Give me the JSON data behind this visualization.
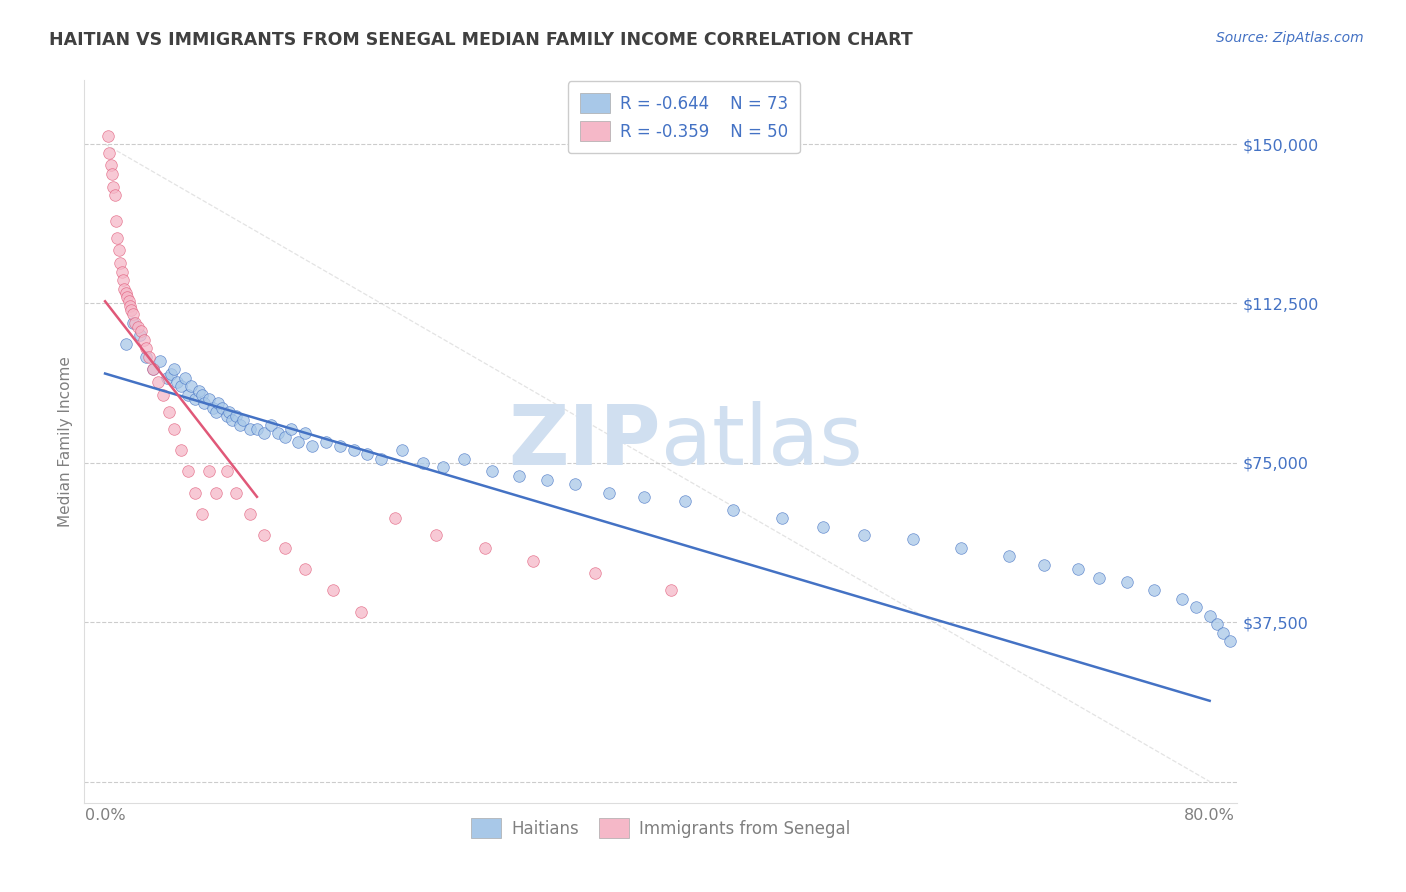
{
  "title": "HAITIAN VS IMMIGRANTS FROM SENEGAL MEDIAN FAMILY INCOME CORRELATION CHART",
  "source": "Source: ZipAtlas.com",
  "ylabel": "Median Family Income",
  "xlim": [
    -1.5,
    82
  ],
  "ylim": [
    -5000,
    165000
  ],
  "yticks": [
    0,
    37500,
    75000,
    112500,
    150000
  ],
  "ytick_labels": [
    "",
    "$37,500",
    "$75,000",
    "$112,500",
    "$150,000"
  ],
  "xtick_labels": [
    "0.0%",
    "80.0%"
  ],
  "xtick_pos": [
    0,
    80
  ],
  "legend_r1": "R = -0.644",
  "legend_n1": "N = 73",
  "legend_r2": "R = -0.359",
  "legend_n2": "N = 50",
  "blue_color": "#A8C8E8",
  "pink_color": "#F5B8C8",
  "blue_line_color": "#4472C4",
  "pink_line_color": "#E05878",
  "title_color": "#404040",
  "axis_label_color": "#808080",
  "tick_color_right": "#4472C4",
  "grid_color": "#CCCCCC",
  "watermark_color": "#D0DFF0",
  "background_color": "#FFFFFF",
  "blue_line_x0": 0,
  "blue_line_y0": 96000,
  "blue_line_x1": 80,
  "blue_line_y1": 19000,
  "pink_line_x0": 0,
  "pink_line_y0": 113000,
  "pink_line_x1": 11,
  "pink_line_y1": 67000,
  "diag_line_x": [
    0,
    80
  ],
  "diag_line_y": [
    150000,
    0
  ],
  "blue_scatter_x": [
    1.5,
    2.0,
    2.5,
    3.0,
    3.5,
    4.0,
    4.5,
    4.8,
    5.0,
    5.2,
    5.5,
    5.8,
    6.0,
    6.2,
    6.5,
    6.8,
    7.0,
    7.2,
    7.5,
    7.8,
    8.0,
    8.2,
    8.5,
    8.8,
    9.0,
    9.2,
    9.5,
    9.8,
    10.0,
    10.5,
    11.0,
    11.5,
    12.0,
    12.5,
    13.0,
    13.5,
    14.0,
    14.5,
    15.0,
    16.0,
    17.0,
    18.0,
    19.0,
    20.0,
    21.5,
    23.0,
    24.5,
    26.0,
    28.0,
    30.0,
    32.0,
    34.0,
    36.5,
    39.0,
    42.0,
    45.5,
    49.0,
    52.0,
    55.0,
    58.5,
    62.0,
    65.5,
    68.0,
    70.5,
    72.0,
    74.0,
    76.0,
    78.0,
    79.0,
    80.0,
    80.5,
    81.0,
    81.5
  ],
  "blue_scatter_y": [
    103000,
    108000,
    105000,
    100000,
    97000,
    99000,
    95000,
    96000,
    97000,
    94000,
    93000,
    95000,
    91000,
    93000,
    90000,
    92000,
    91000,
    89000,
    90000,
    88000,
    87000,
    89000,
    88000,
    86000,
    87000,
    85000,
    86000,
    84000,
    85000,
    83000,
    83000,
    82000,
    84000,
    82000,
    81000,
    83000,
    80000,
    82000,
    79000,
    80000,
    79000,
    78000,
    77000,
    76000,
    78000,
    75000,
    74000,
    76000,
    73000,
    72000,
    71000,
    70000,
    68000,
    67000,
    66000,
    64000,
    62000,
    60000,
    58000,
    57000,
    55000,
    53000,
    51000,
    50000,
    48000,
    47000,
    45000,
    43000,
    41000,
    39000,
    37000,
    35000,
    33000
  ],
  "pink_scatter_x": [
    0.2,
    0.3,
    0.4,
    0.5,
    0.6,
    0.7,
    0.8,
    0.9,
    1.0,
    1.1,
    1.2,
    1.3,
    1.4,
    1.5,
    1.6,
    1.7,
    1.8,
    1.9,
    2.0,
    2.2,
    2.4,
    2.6,
    2.8,
    3.0,
    3.2,
    3.5,
    3.8,
    4.2,
    4.6,
    5.0,
    5.5,
    6.0,
    6.5,
    7.0,
    7.5,
    8.0,
    8.8,
    9.5,
    10.5,
    11.5,
    13.0,
    14.5,
    16.5,
    18.5,
    21.0,
    24.0,
    27.5,
    31.0,
    35.5,
    41.0
  ],
  "pink_scatter_y": [
    152000,
    148000,
    145000,
    143000,
    140000,
    138000,
    132000,
    128000,
    125000,
    122000,
    120000,
    118000,
    116000,
    115000,
    114000,
    113000,
    112000,
    111000,
    110000,
    108000,
    107000,
    106000,
    104000,
    102000,
    100000,
    97000,
    94000,
    91000,
    87000,
    83000,
    78000,
    73000,
    68000,
    63000,
    73000,
    68000,
    73000,
    68000,
    63000,
    58000,
    55000,
    50000,
    45000,
    40000,
    62000,
    58000,
    55000,
    52000,
    49000,
    45000
  ]
}
